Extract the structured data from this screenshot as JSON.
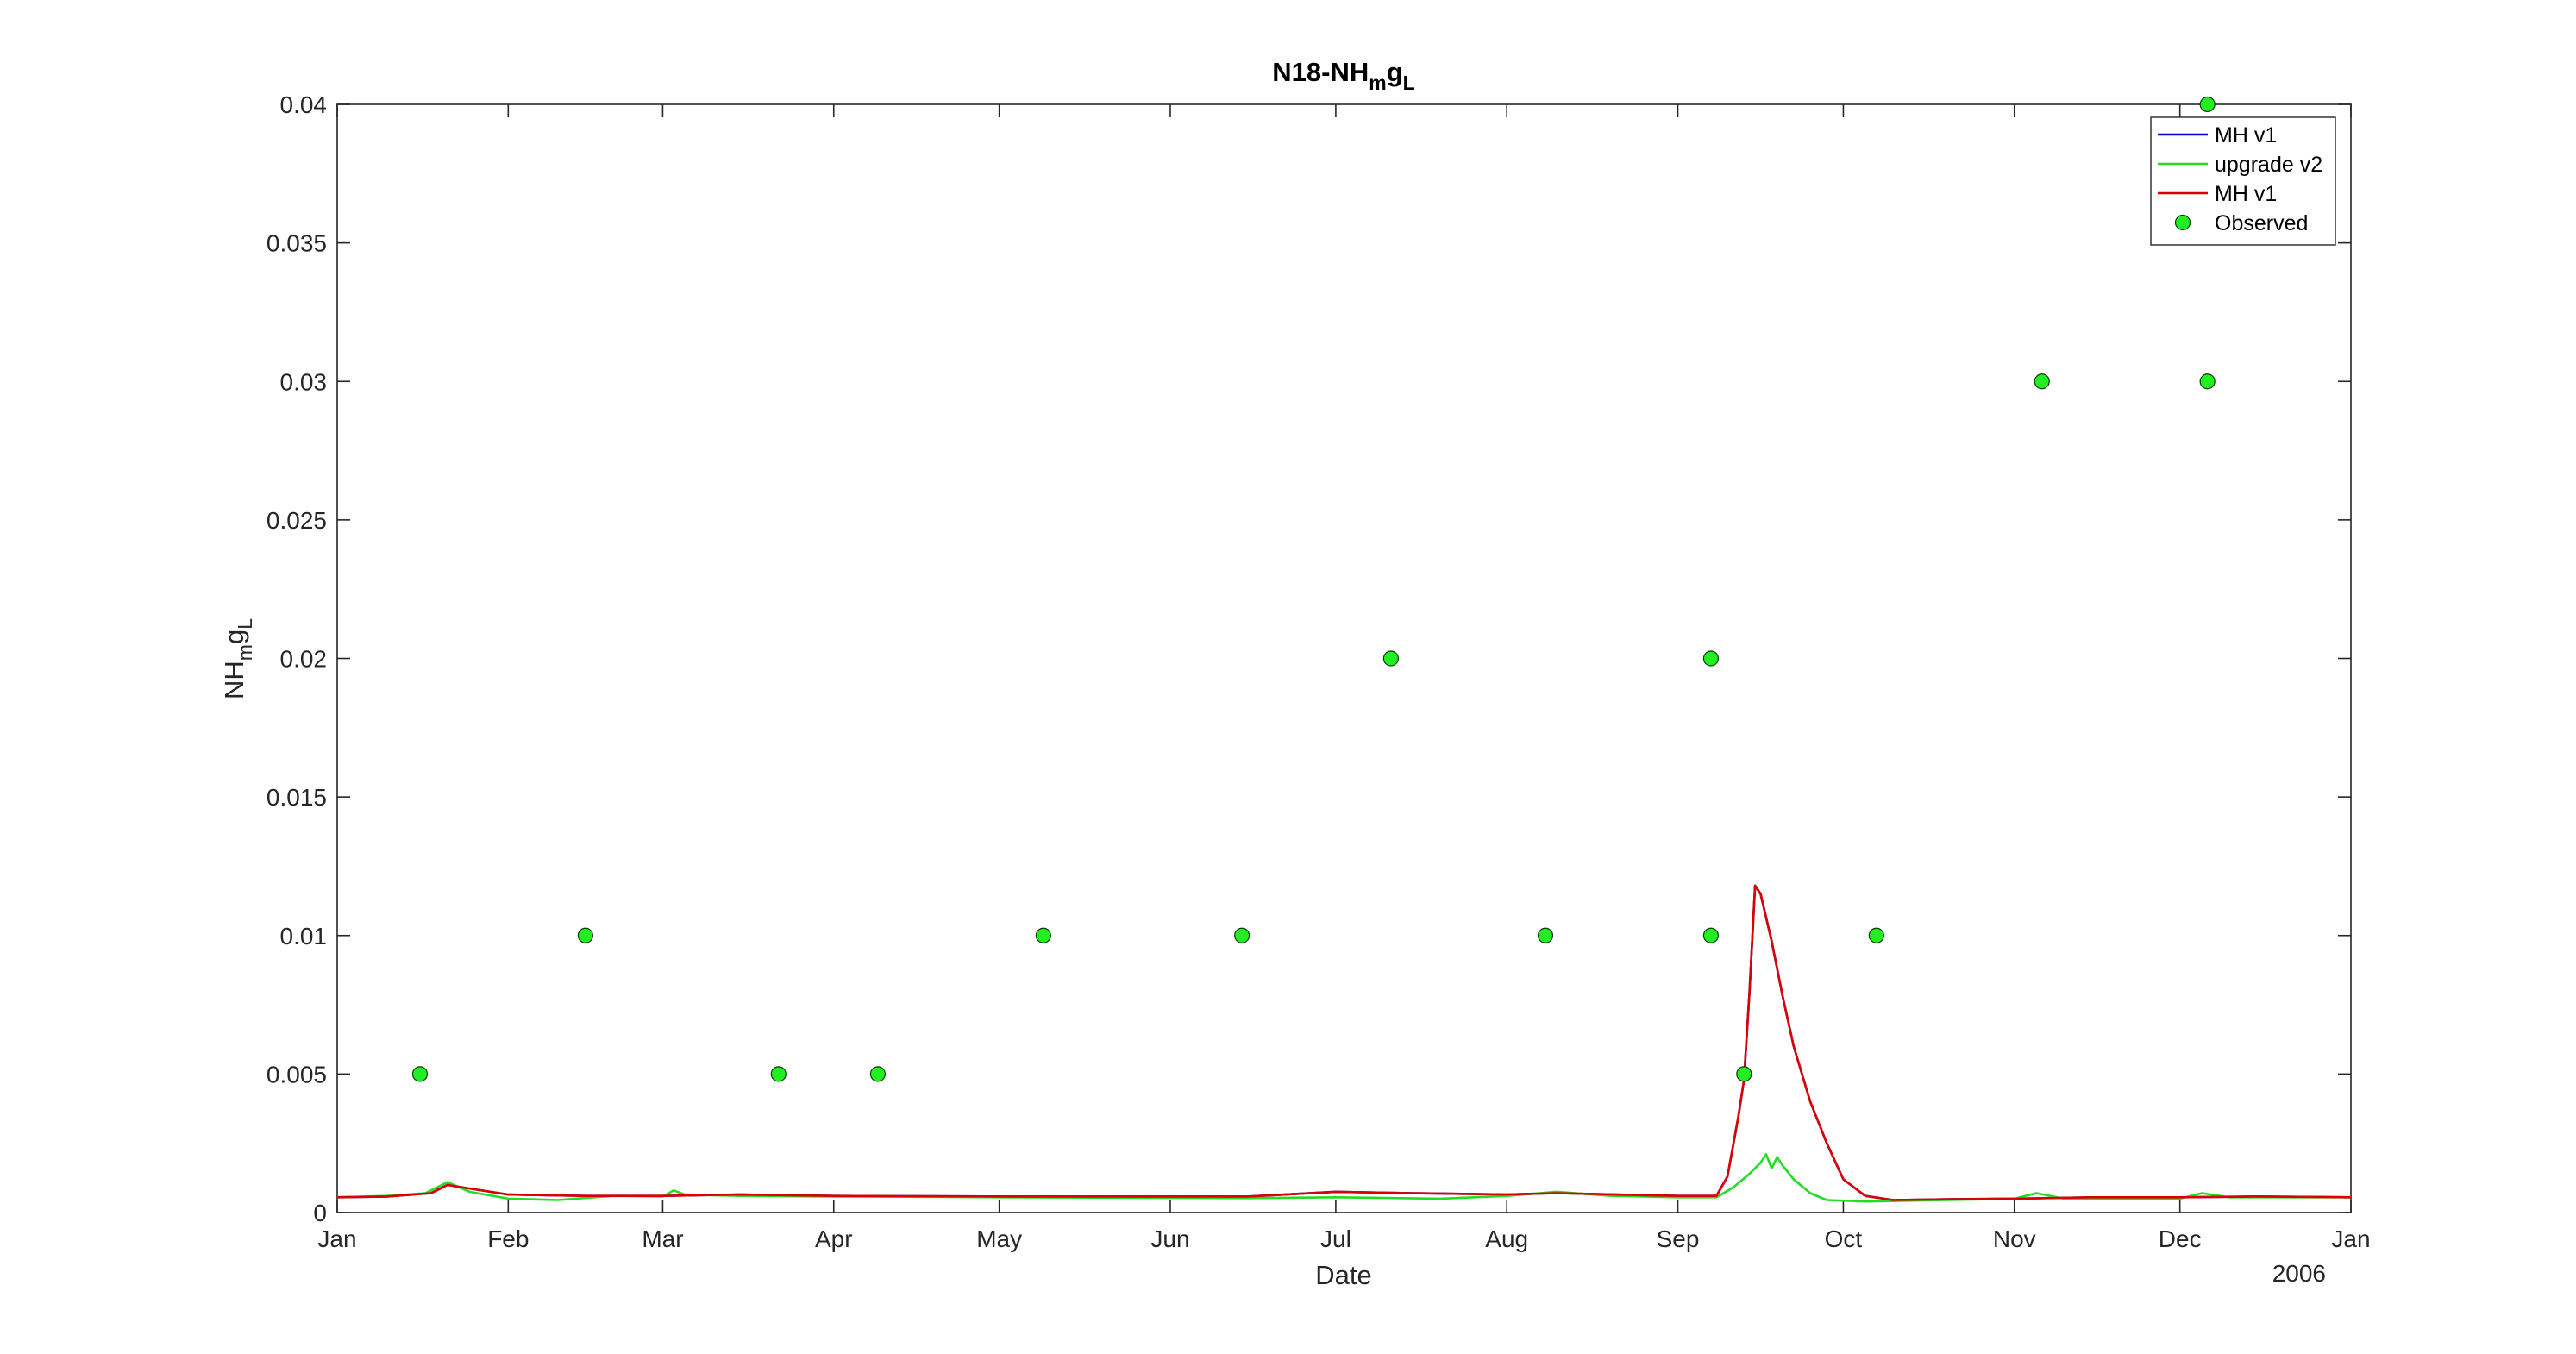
{
  "chart_data": {
    "type": "line",
    "title": {
      "main": "N18-NH",
      "sub1": "m",
      "mid": "g",
      "sub2": "L"
    },
    "xlabel": "Date",
    "ylabel": {
      "main": "NH",
      "sub1": "m",
      "mid": "g",
      "sub2": "L"
    },
    "x_year_label": "2006",
    "xlim": [
      "2005-01-01",
      "2006-01-01"
    ],
    "ylim": [
      0,
      0.04
    ],
    "x_ticks": [
      {
        "date": "2005-01-01",
        "label": "Jan"
      },
      {
        "date": "2005-02-01",
        "label": "Feb"
      },
      {
        "date": "2005-03-01",
        "label": "Mar"
      },
      {
        "date": "2005-04-01",
        "label": "Apr"
      },
      {
        "date": "2005-05-01",
        "label": "May"
      },
      {
        "date": "2005-06-01",
        "label": "Jun"
      },
      {
        "date": "2005-07-01",
        "label": "Jul"
      },
      {
        "date": "2005-08-01",
        "label": "Aug"
      },
      {
        "date": "2005-09-01",
        "label": "Sep"
      },
      {
        "date": "2005-10-01",
        "label": "Oct"
      },
      {
        "date": "2005-11-01",
        "label": "Nov"
      },
      {
        "date": "2005-12-01",
        "label": "Dec"
      },
      {
        "date": "2006-01-01",
        "label": "Jan"
      }
    ],
    "y_ticks": [
      {
        "value": 0,
        "label": "0"
      },
      {
        "value": 0.005,
        "label": "0.005"
      },
      {
        "value": 0.01,
        "label": "0.01"
      },
      {
        "value": 0.015,
        "label": "0.015"
      },
      {
        "value": 0.02,
        "label": "0.02"
      },
      {
        "value": 0.025,
        "label": "0.025"
      },
      {
        "value": 0.03,
        "label": "0.03"
      },
      {
        "value": 0.035,
        "label": "0.035"
      },
      {
        "value": 0.04,
        "label": "0.04"
      }
    ],
    "grid": false,
    "legend_position": "top-right",
    "series": [
      {
        "name": "MH v1",
        "kind": "line",
        "color": "#0000cc",
        "points": [
          [
            "2005-01-01",
            0.00055
          ],
          [
            "2005-01-10",
            0.00058
          ],
          [
            "2005-01-18",
            0.0007
          ],
          [
            "2005-01-21",
            0.001
          ],
          [
            "2005-01-24",
            0.0009
          ],
          [
            "2005-02-01",
            0.00065
          ],
          [
            "2005-02-15",
            0.0006
          ],
          [
            "2005-03-01",
            0.0006
          ],
          [
            "2005-03-15",
            0.00065
          ],
          [
            "2005-04-01",
            0.0006
          ],
          [
            "2005-05-01",
            0.00058
          ],
          [
            "2005-06-15",
            0.00058
          ],
          [
            "2005-07-01",
            0.00075
          ],
          [
            "2005-07-15",
            0.0007
          ],
          [
            "2005-08-01",
            0.00065
          ],
          [
            "2005-08-10",
            0.0007
          ],
          [
            "2005-09-01",
            0.0006
          ],
          [
            "2005-09-08",
            0.0006
          ],
          [
            "2005-09-10",
            0.0013
          ],
          [
            "2005-09-12",
            0.0035
          ],
          [
            "2005-09-13",
            0.0048
          ],
          [
            "2005-09-14",
            0.008
          ],
          [
            "2005-09-15",
            0.0118
          ],
          [
            "2005-09-16",
            0.0115
          ],
          [
            "2005-09-18",
            0.0098
          ],
          [
            "2005-09-20",
            0.0078
          ],
          [
            "2005-09-22",
            0.006
          ],
          [
            "2005-09-25",
            0.004
          ],
          [
            "2005-09-28",
            0.0025
          ],
          [
            "2005-10-01",
            0.0012
          ],
          [
            "2005-10-05",
            0.0006
          ],
          [
            "2005-10-10",
            0.00045
          ],
          [
            "2005-10-20",
            0.00048
          ],
          [
            "2005-11-01",
            0.0005
          ],
          [
            "2005-11-15",
            0.00055
          ],
          [
            "2005-12-01",
            0.00055
          ],
          [
            "2005-12-15",
            0.00058
          ],
          [
            "2006-01-01",
            0.00055
          ]
        ]
      },
      {
        "name": "upgrade v2",
        "kind": "line",
        "color": "#22dd22",
        "points": [
          [
            "2005-01-01",
            0.00055
          ],
          [
            "2005-01-10",
            0.0006
          ],
          [
            "2005-01-17",
            0.0007
          ],
          [
            "2005-01-21",
            0.0011
          ],
          [
            "2005-01-25",
            0.00075
          ],
          [
            "2005-02-01",
            0.0005
          ],
          [
            "2005-02-10",
            0.00045
          ],
          [
            "2005-02-20",
            0.0006
          ],
          [
            "2005-03-01",
            0.00058
          ],
          [
            "2005-03-03",
            0.0008
          ],
          [
            "2005-03-05",
            0.00065
          ],
          [
            "2005-03-15",
            0.0006
          ],
          [
            "2005-04-01",
            0.00058
          ],
          [
            "2005-05-01",
            0.00055
          ],
          [
            "2005-06-15",
            0.00052
          ],
          [
            "2005-07-01",
            0.00055
          ],
          [
            "2005-07-20",
            0.0005
          ],
          [
            "2005-08-01",
            0.0006
          ],
          [
            "2005-08-10",
            0.00075
          ],
          [
            "2005-08-20",
            0.0006
          ],
          [
            "2005-09-01",
            0.00055
          ],
          [
            "2005-09-08",
            0.00055
          ],
          [
            "2005-09-11",
            0.0009
          ],
          [
            "2005-09-14",
            0.0014
          ],
          [
            "2005-09-16",
            0.0018
          ],
          [
            "2005-09-17",
            0.0021
          ],
          [
            "2005-09-18",
            0.0016
          ],
          [
            "2005-09-19",
            0.002
          ],
          [
            "2005-09-20",
            0.0017
          ],
          [
            "2005-09-22",
            0.0012
          ],
          [
            "2005-09-25",
            0.0007
          ],
          [
            "2005-09-28",
            0.00045
          ],
          [
            "2005-10-05",
            0.0004
          ],
          [
            "2005-10-20",
            0.00045
          ],
          [
            "2005-11-01",
            0.0005
          ],
          [
            "2005-11-05",
            0.0007
          ],
          [
            "2005-11-10",
            0.0005
          ],
          [
            "2005-12-01",
            0.0005
          ],
          [
            "2005-12-05",
            0.0007
          ],
          [
            "2005-12-10",
            0.00055
          ],
          [
            "2006-01-01",
            0.00055
          ]
        ]
      },
      {
        "name": "MH v1",
        "kind": "line",
        "color": "#dd0000",
        "points": [
          [
            "2005-01-01",
            0.00055
          ],
          [
            "2005-01-10",
            0.00058
          ],
          [
            "2005-01-18",
            0.0007
          ],
          [
            "2005-01-21",
            0.001
          ],
          [
            "2005-01-24",
            0.0009
          ],
          [
            "2005-02-01",
            0.00065
          ],
          [
            "2005-02-15",
            0.0006
          ],
          [
            "2005-03-01",
            0.0006
          ],
          [
            "2005-03-15",
            0.00065
          ],
          [
            "2005-04-01",
            0.0006
          ],
          [
            "2005-05-01",
            0.00058
          ],
          [
            "2005-06-15",
            0.00058
          ],
          [
            "2005-07-01",
            0.00075
          ],
          [
            "2005-07-15",
            0.0007
          ],
          [
            "2005-08-01",
            0.00065
          ],
          [
            "2005-08-10",
            0.0007
          ],
          [
            "2005-09-01",
            0.0006
          ],
          [
            "2005-09-08",
            0.0006
          ],
          [
            "2005-09-10",
            0.0013
          ],
          [
            "2005-09-12",
            0.0035
          ],
          [
            "2005-09-13",
            0.0048
          ],
          [
            "2005-09-14",
            0.008
          ],
          [
            "2005-09-15",
            0.0118
          ],
          [
            "2005-09-16",
            0.0115
          ],
          [
            "2005-09-18",
            0.0098
          ],
          [
            "2005-09-20",
            0.0078
          ],
          [
            "2005-09-22",
            0.006
          ],
          [
            "2005-09-25",
            0.004
          ],
          [
            "2005-09-28",
            0.0025
          ],
          [
            "2005-10-01",
            0.0012
          ],
          [
            "2005-10-05",
            0.0006
          ],
          [
            "2005-10-10",
            0.00045
          ],
          [
            "2005-10-20",
            0.00048
          ],
          [
            "2005-11-01",
            0.0005
          ],
          [
            "2005-11-15",
            0.00055
          ],
          [
            "2005-12-01",
            0.00055
          ],
          [
            "2005-12-15",
            0.00058
          ],
          [
            "2006-01-01",
            0.00055
          ]
        ]
      },
      {
        "name": "Observed",
        "kind": "scatter",
        "color": "#22ee22",
        "points": [
          [
            "2005-01-16",
            0.005
          ],
          [
            "2005-02-15",
            0.01
          ],
          [
            "2005-03-22",
            0.005
          ],
          [
            "2005-04-09",
            0.005
          ],
          [
            "2005-05-09",
            0.01
          ],
          [
            "2005-06-14",
            0.01
          ],
          [
            "2005-07-11",
            0.02
          ],
          [
            "2005-08-08",
            0.01
          ],
          [
            "2005-09-07",
            0.02
          ],
          [
            "2005-09-07",
            0.01
          ],
          [
            "2005-09-13",
            0.005
          ],
          [
            "2005-10-07",
            0.01
          ],
          [
            "2005-11-06",
            0.03
          ],
          [
            "2005-12-06",
            0.03
          ],
          [
            "2005-12-06",
            0.04
          ]
        ]
      }
    ]
  }
}
